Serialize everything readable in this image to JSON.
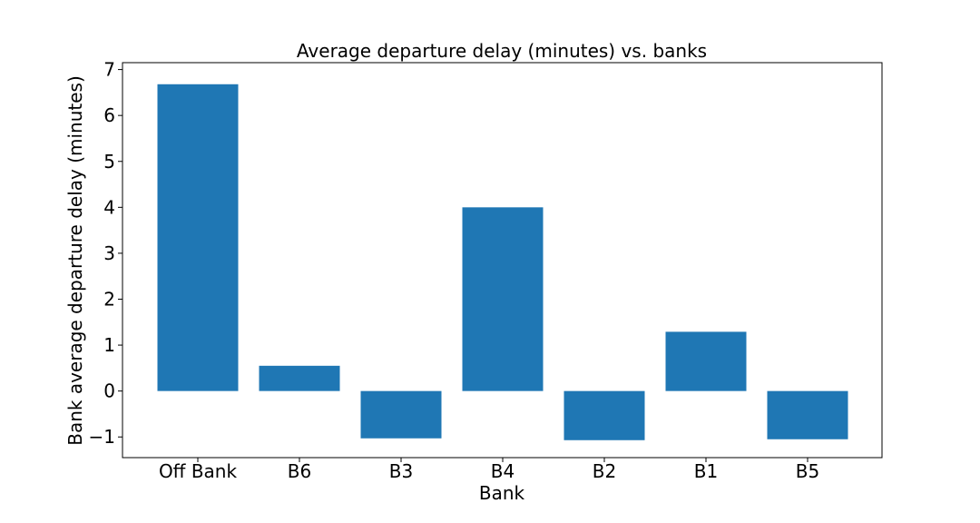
{
  "chart_data": {
    "type": "bar",
    "title": "Average departure delay (minutes) vs. banks",
    "xlabel": "Bank",
    "ylabel": "Bank average departure delay (minutes)",
    "categories": [
      "Off Bank",
      "B6",
      "B3",
      "B4",
      "B2",
      "B1",
      "B5"
    ],
    "values": [
      6.68,
      0.55,
      -1.03,
      4.0,
      -1.07,
      1.29,
      -1.05
    ],
    "ylim": [
      -1.45,
      7.15
    ],
    "yticks": [
      -1,
      0,
      1,
      2,
      3,
      4,
      5,
      6,
      7
    ],
    "grid": false,
    "bar_color": "#1f77b4"
  }
}
